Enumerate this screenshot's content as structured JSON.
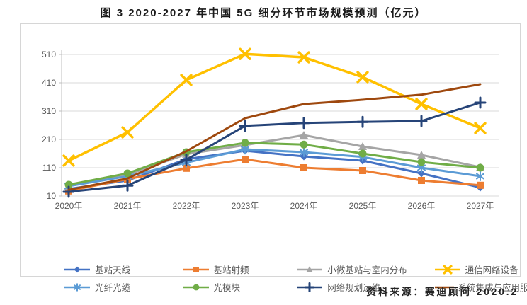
{
  "title": "图 3 2020-2027 年中国 5G 细分环节市场规模预测（亿元）",
  "source": "资料来源：赛迪顾问  2020.2",
  "chart_data": {
    "type": "line",
    "x": [
      "2020年",
      "2021年",
      "2022年",
      "2023年",
      "2024年",
      "2025年",
      "2026年",
      "2027年"
    ],
    "series": [
      {
        "name": "基站天线",
        "color": "#4472C4",
        "marker": "diamond",
        "values": [
          35,
          65,
          140,
          170,
          150,
          135,
          90,
          40
        ]
      },
      {
        "name": "基站射频",
        "color": "#ED7D31",
        "marker": "square",
        "values": [
          28,
          70,
          108,
          140,
          110,
          100,
          65,
          48
        ]
      },
      {
        "name": "小微基站与室内分布",
        "color": "#A5A5A5",
        "marker": "triangle",
        "values": [
          45,
          85,
          158,
          190,
          225,
          185,
          155,
          112
        ]
      },
      {
        "name": "通信网络设备",
        "color": "#FFC000",
        "marker": "x",
        "values": [
          135,
          235,
          420,
          512,
          500,
          430,
          335,
          250
        ]
      },
      {
        "name": "光纤光缆",
        "color": "#5B9BD5",
        "marker": "asterisk",
        "values": [
          45,
          80,
          128,
          175,
          165,
          148,
          110,
          80
        ]
      },
      {
        "name": "光模块",
        "color": "#70AD47",
        "marker": "circle",
        "values": [
          50,
          90,
          165,
          198,
          192,
          160,
          130,
          110
        ]
      },
      {
        "name": "网络规划运维",
        "color": "#264478",
        "marker": "plus",
        "values": [
          25,
          47,
          138,
          258,
          268,
          272,
          275,
          340
        ]
      },
      {
        "name": "系统集成与应用服务",
        "color": "#9E480E",
        "marker": "none",
        "values": [
          32,
          72,
          168,
          285,
          335,
          350,
          368,
          405
        ]
      }
    ],
    "yticks": [
      10,
      110,
      210,
      310,
      410,
      510
    ],
    "ylim": [
      10,
      510
    ],
    "grid": true,
    "legend_position": "bottom",
    "grid_color": "#d9d9d9",
    "axis_color": "#bfbfbf"
  }
}
